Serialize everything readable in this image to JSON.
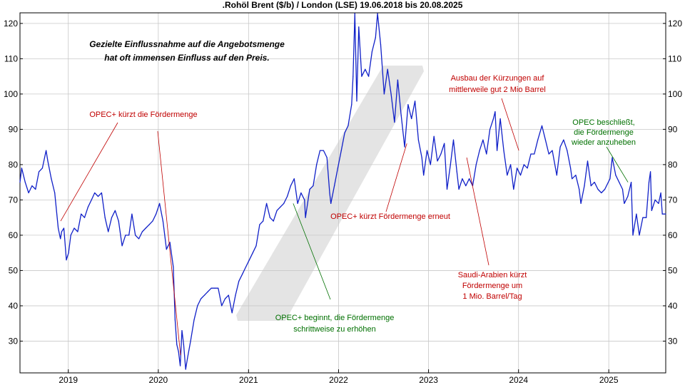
{
  "chart_data": {
    "type": "line",
    "title": ".Rohöl Brent ($/b) / London (LSE) 19.06.2018 bis 20.08.2025",
    "xlabel": "",
    "ylabel": "",
    "xlim": [
      "2018-06-19",
      "2025-08-20"
    ],
    "ylim": [
      21,
      123
    ],
    "x_ticks": [
      "2019",
      "2020",
      "2021",
      "2022",
      "2023",
      "2024",
      "2025"
    ],
    "y_ticks": [
      30,
      40,
      50,
      60,
      70,
      80,
      90,
      100,
      110,
      120
    ],
    "grid": true,
    "legend": "none",
    "colors": {
      "line": "#1020c8",
      "grid": "#c8c8c8",
      "red_annotation": "#c00000",
      "green_annotation": "#007000",
      "watermark": "#e6e6e6"
    },
    "series": [
      {
        "values": [
          [
            "2018-06-19",
            75
          ],
          [
            "2018-06-26",
            79
          ],
          [
            "2018-07-10",
            75
          ],
          [
            "2018-07-24",
            72
          ],
          [
            "2018-08-07",
            74
          ],
          [
            "2018-08-21",
            73
          ],
          [
            "2018-09-04",
            78
          ],
          [
            "2018-09-18",
            79
          ],
          [
            "2018-10-03",
            84
          ],
          [
            "2018-10-10",
            81
          ],
          [
            "2018-10-24",
            76
          ],
          [
            "2018-11-07",
            72
          ],
          [
            "2018-11-21",
            62
          ],
          [
            "2018-11-30",
            59
          ],
          [
            "2018-12-05",
            61
          ],
          [
            "2018-12-14",
            62
          ],
          [
            "2018-12-24",
            53
          ],
          [
            "2019-01-02",
            55
          ],
          [
            "2019-01-11",
            60
          ],
          [
            "2019-01-25",
            62
          ],
          [
            "2019-02-08",
            61
          ],
          [
            "2019-02-22",
            66
          ],
          [
            "2019-03-08",
            65
          ],
          [
            "2019-03-22",
            68
          ],
          [
            "2019-04-05",
            70
          ],
          [
            "2019-04-18",
            72
          ],
          [
            "2019-05-02",
            71
          ],
          [
            "2019-05-16",
            72
          ],
          [
            "2019-05-30",
            65
          ],
          [
            "2019-06-12",
            61
          ],
          [
            "2019-06-26",
            65
          ],
          [
            "2019-07-10",
            67
          ],
          [
            "2019-07-24",
            64
          ],
          [
            "2019-08-07",
            57
          ],
          [
            "2019-08-21",
            60
          ],
          [
            "2019-09-04",
            60
          ],
          [
            "2019-09-16",
            66
          ],
          [
            "2019-09-30",
            60
          ],
          [
            "2019-10-14",
            59
          ],
          [
            "2019-10-28",
            61
          ],
          [
            "2019-11-11",
            62
          ],
          [
            "2019-11-25",
            63
          ],
          [
            "2019-12-09",
            64
          ],
          [
            "2019-12-23",
            66
          ],
          [
            "2020-01-06",
            69
          ],
          [
            "2020-01-20",
            64
          ],
          [
            "2020-02-03",
            56
          ],
          [
            "2020-02-17",
            58
          ],
          [
            "2020-03-02",
            51
          ],
          [
            "2020-03-09",
            36
          ],
          [
            "2020-03-16",
            29
          ],
          [
            "2020-03-23",
            27
          ],
          [
            "2020-03-30",
            23
          ],
          [
            "2020-04-06",
            33
          ],
          [
            "2020-04-13",
            29
          ],
          [
            "2020-04-21",
            22
          ],
          [
            "2020-04-28",
            25
          ],
          [
            "2020-05-11",
            30
          ],
          [
            "2020-05-25",
            36
          ],
          [
            "2020-06-08",
            40
          ],
          [
            "2020-06-22",
            42
          ],
          [
            "2020-07-06",
            43
          ],
          [
            "2020-07-20",
            44
          ],
          [
            "2020-08-03",
            45
          ],
          [
            "2020-08-17",
            45
          ],
          [
            "2020-08-31",
            45
          ],
          [
            "2020-09-14",
            40
          ],
          [
            "2020-09-28",
            42
          ],
          [
            "2020-10-12",
            43
          ],
          [
            "2020-10-26",
            38
          ],
          [
            "2020-11-09",
            43
          ],
          [
            "2020-11-23",
            47
          ],
          [
            "2020-12-07",
            49
          ],
          [
            "2020-12-21",
            51
          ],
          [
            "2021-01-04",
            53
          ],
          [
            "2021-01-18",
            55
          ],
          [
            "2021-02-01",
            57
          ],
          [
            "2021-02-15",
            63
          ],
          [
            "2021-03-01",
            64
          ],
          [
            "2021-03-15",
            69
          ],
          [
            "2021-03-29",
            65
          ],
          [
            "2021-04-12",
            64
          ],
          [
            "2021-04-26",
            67
          ],
          [
            "2021-05-10",
            68
          ],
          [
            "2021-05-24",
            69
          ],
          [
            "2021-06-07",
            71
          ],
          [
            "2021-06-21",
            74
          ],
          [
            "2021-07-05",
            76
          ],
          [
            "2021-07-19",
            69
          ],
          [
            "2021-08-02",
            72
          ],
          [
            "2021-08-16",
            70
          ],
          [
            "2021-08-20",
            65
          ],
          [
            "2021-09-06",
            73
          ],
          [
            "2021-09-20",
            74
          ],
          [
            "2021-10-04",
            80
          ],
          [
            "2021-10-18",
            84
          ],
          [
            "2021-11-01",
            84
          ],
          [
            "2021-11-15",
            82
          ],
          [
            "2021-11-26",
            72
          ],
          [
            "2021-12-01",
            69
          ],
          [
            "2021-12-15",
            74
          ],
          [
            "2021-12-29",
            79
          ],
          [
            "2022-01-12",
            84
          ],
          [
            "2022-01-26",
            89
          ],
          [
            "2022-02-09",
            91
          ],
          [
            "2022-02-23",
            97
          ],
          [
            "2022-03-01",
            105
          ],
          [
            "2022-03-08",
            128
          ],
          [
            "2022-03-16",
            98
          ],
          [
            "2022-03-24",
            119
          ],
          [
            "2022-04-05",
            105
          ],
          [
            "2022-04-19",
            107
          ],
          [
            "2022-05-03",
            105
          ],
          [
            "2022-05-17",
            112
          ],
          [
            "2022-05-31",
            116
          ],
          [
            "2022-06-08",
            123
          ],
          [
            "2022-06-21",
            114
          ],
          [
            "2022-07-05",
            100
          ],
          [
            "2022-07-19",
            107
          ],
          [
            "2022-08-02",
            100
          ],
          [
            "2022-08-16",
            92
          ],
          [
            "2022-08-29",
            104
          ],
          [
            "2022-09-12",
            94
          ],
          [
            "2022-09-26",
            85
          ],
          [
            "2022-10-10",
            97
          ],
          [
            "2022-10-24",
            93
          ],
          [
            "2022-11-07",
            98
          ],
          [
            "2022-11-21",
            87
          ],
          [
            "2022-12-05",
            82
          ],
          [
            "2022-12-12",
            77
          ],
          [
            "2022-12-26",
            84
          ],
          [
            "2023-01-09",
            80
          ],
          [
            "2023-01-23",
            88
          ],
          [
            "2023-02-06",
            81
          ],
          [
            "2023-02-20",
            83
          ],
          [
            "2023-03-06",
            86
          ],
          [
            "2023-03-17",
            73
          ],
          [
            "2023-03-31",
            80
          ],
          [
            "2023-04-12",
            87
          ],
          [
            "2023-04-26",
            78
          ],
          [
            "2023-05-04",
            73
          ],
          [
            "2023-05-18",
            76
          ],
          [
            "2023-06-01",
            74
          ],
          [
            "2023-06-15",
            76
          ],
          [
            "2023-06-29",
            74
          ],
          [
            "2023-07-13",
            80
          ],
          [
            "2023-07-27",
            84
          ],
          [
            "2023-08-10",
            87
          ],
          [
            "2023-08-24",
            83
          ],
          [
            "2023-09-07",
            90
          ],
          [
            "2023-09-21",
            93
          ],
          [
            "2023-09-28",
            95
          ],
          [
            "2023-10-06",
            84
          ],
          [
            "2023-10-19",
            93
          ],
          [
            "2023-11-02",
            84
          ],
          [
            "2023-11-16",
            77
          ],
          [
            "2023-11-30",
            80
          ],
          [
            "2023-12-12",
            73
          ],
          [
            "2023-12-26",
            79
          ],
          [
            "2024-01-09",
            77
          ],
          [
            "2024-01-23",
            80
          ],
          [
            "2024-02-06",
            79
          ],
          [
            "2024-02-20",
            83
          ],
          [
            "2024-03-05",
            83
          ],
          [
            "2024-03-19",
            87
          ],
          [
            "2024-04-05",
            91
          ],
          [
            "2024-04-19",
            87
          ],
          [
            "2024-05-03",
            83
          ],
          [
            "2024-05-17",
            84
          ],
          [
            "2024-06-04",
            77
          ],
          [
            "2024-06-18",
            85
          ],
          [
            "2024-07-02",
            87
          ],
          [
            "2024-07-16",
            84
          ],
          [
            "2024-07-30",
            79
          ],
          [
            "2024-08-05",
            76
          ],
          [
            "2024-08-20",
            77
          ],
          [
            "2024-09-03",
            73
          ],
          [
            "2024-09-10",
            69
          ],
          [
            "2024-09-24",
            74
          ],
          [
            "2024-10-07",
            81
          ],
          [
            "2024-10-21",
            74
          ],
          [
            "2024-11-04",
            75
          ],
          [
            "2024-11-18",
            73
          ],
          [
            "2024-12-02",
            72
          ],
          [
            "2024-12-16",
            73
          ],
          [
            "2025-01-06",
            76
          ],
          [
            "2025-01-15",
            82
          ],
          [
            "2025-01-29",
            77
          ],
          [
            "2025-02-12",
            75
          ],
          [
            "2025-02-26",
            73
          ],
          [
            "2025-03-05",
            69
          ],
          [
            "2025-03-19",
            71
          ],
          [
            "2025-04-02",
            75
          ],
          [
            "2025-04-09",
            60
          ],
          [
            "2025-04-23",
            66
          ],
          [
            "2025-05-05",
            60
          ],
          [
            "2025-05-19",
            65
          ],
          [
            "2025-06-02",
            65
          ],
          [
            "2025-06-13",
            75
          ],
          [
            "2025-06-19",
            78
          ],
          [
            "2025-06-24",
            67
          ],
          [
            "2025-07-08",
            70
          ],
          [
            "2025-07-22",
            69
          ],
          [
            "2025-07-31",
            72
          ],
          [
            "2025-08-06",
            66
          ],
          [
            "2025-08-20",
            66
          ]
        ]
      }
    ],
    "annotations": [
      {
        "lines": [
          "Gezielte Einflussnahme auf die Angebotsmenge",
          "hat oft immensen Einfluss auf den Preis."
        ],
        "style": "note"
      },
      {
        "lines": [
          "OPEC+ kürzt die Fördermenge"
        ],
        "color": "red",
        "targets": [
          [
            "2018-12-01",
            64
          ],
          [
            "2020-03-31",
            26
          ]
        ]
      },
      {
        "lines": [
          "OPEC+ beginnt, die Fördermenge",
          "schrittweise zu erhöhen"
        ],
        "color": "green",
        "targets": [
          [
            "2021-07-01",
            69
          ]
        ]
      },
      {
        "lines": [
          "OPEC+ kürzt Fördermenge erneut"
        ],
        "color": "red",
        "targets": [
          [
            "2022-10-05",
            86
          ]
        ]
      },
      {
        "lines": [
          "Ausbau der Kürzungen auf",
          "mittlerweile gut 2 Mio Barrel"
        ],
        "color": "red",
        "targets": [
          [
            "2024-01-02",
            84
          ]
        ]
      },
      {
        "lines": [
          "Saudi-Arabien kürzt",
          "Fördermenge um",
          "1 Mio. Barrel/Tag"
        ],
        "color": "red",
        "targets": [
          [
            "2023-06-05",
            82
          ]
        ]
      },
      {
        "lines": [
          "OPEC beschließt,",
          "die Fördermenge",
          "wieder anzuheben"
        ],
        "color": "green",
        "targets": [
          [
            "2025-03-20",
            75
          ]
        ]
      }
    ]
  }
}
